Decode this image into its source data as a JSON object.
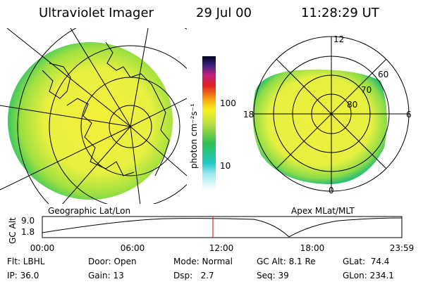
{
  "header": {
    "instrument": "Ultraviolet Imager",
    "date": "29 Jul 00",
    "time": "11:28:29 UT"
  },
  "left_panel": {
    "label": "Geographic Lat/Lon"
  },
  "colorbar": {
    "label": "photon cm⁻²s⁻¹",
    "ticks": [
      "100",
      "10"
    ]
  },
  "right_panel": {
    "label": "Apex MLat/MLT",
    "mlt_labels": [
      "12",
      "6",
      "18",
      "0"
    ],
    "lat_labels": [
      "60",
      "70",
      "80"
    ]
  },
  "altitude_plot": {
    "ylabel": "GC Alt",
    "yticks": [
      "9.0",
      "1.8"
    ],
    "xticks": [
      "00:00",
      "06:00",
      "12:00",
      "18:00",
      "23:59"
    ]
  },
  "info": {
    "rows": [
      [
        "Flt: LBHL",
        "Door: Open",
        "Mode: Normal",
        "GC Alt: 8.1 Re",
        "GLat:  74.4"
      ],
      [
        "IP: 36.0",
        "Gain: 13",
        "Dsp:   2.7",
        "Seq: 39",
        "GLon: 234.1"
      ]
    ]
  }
}
